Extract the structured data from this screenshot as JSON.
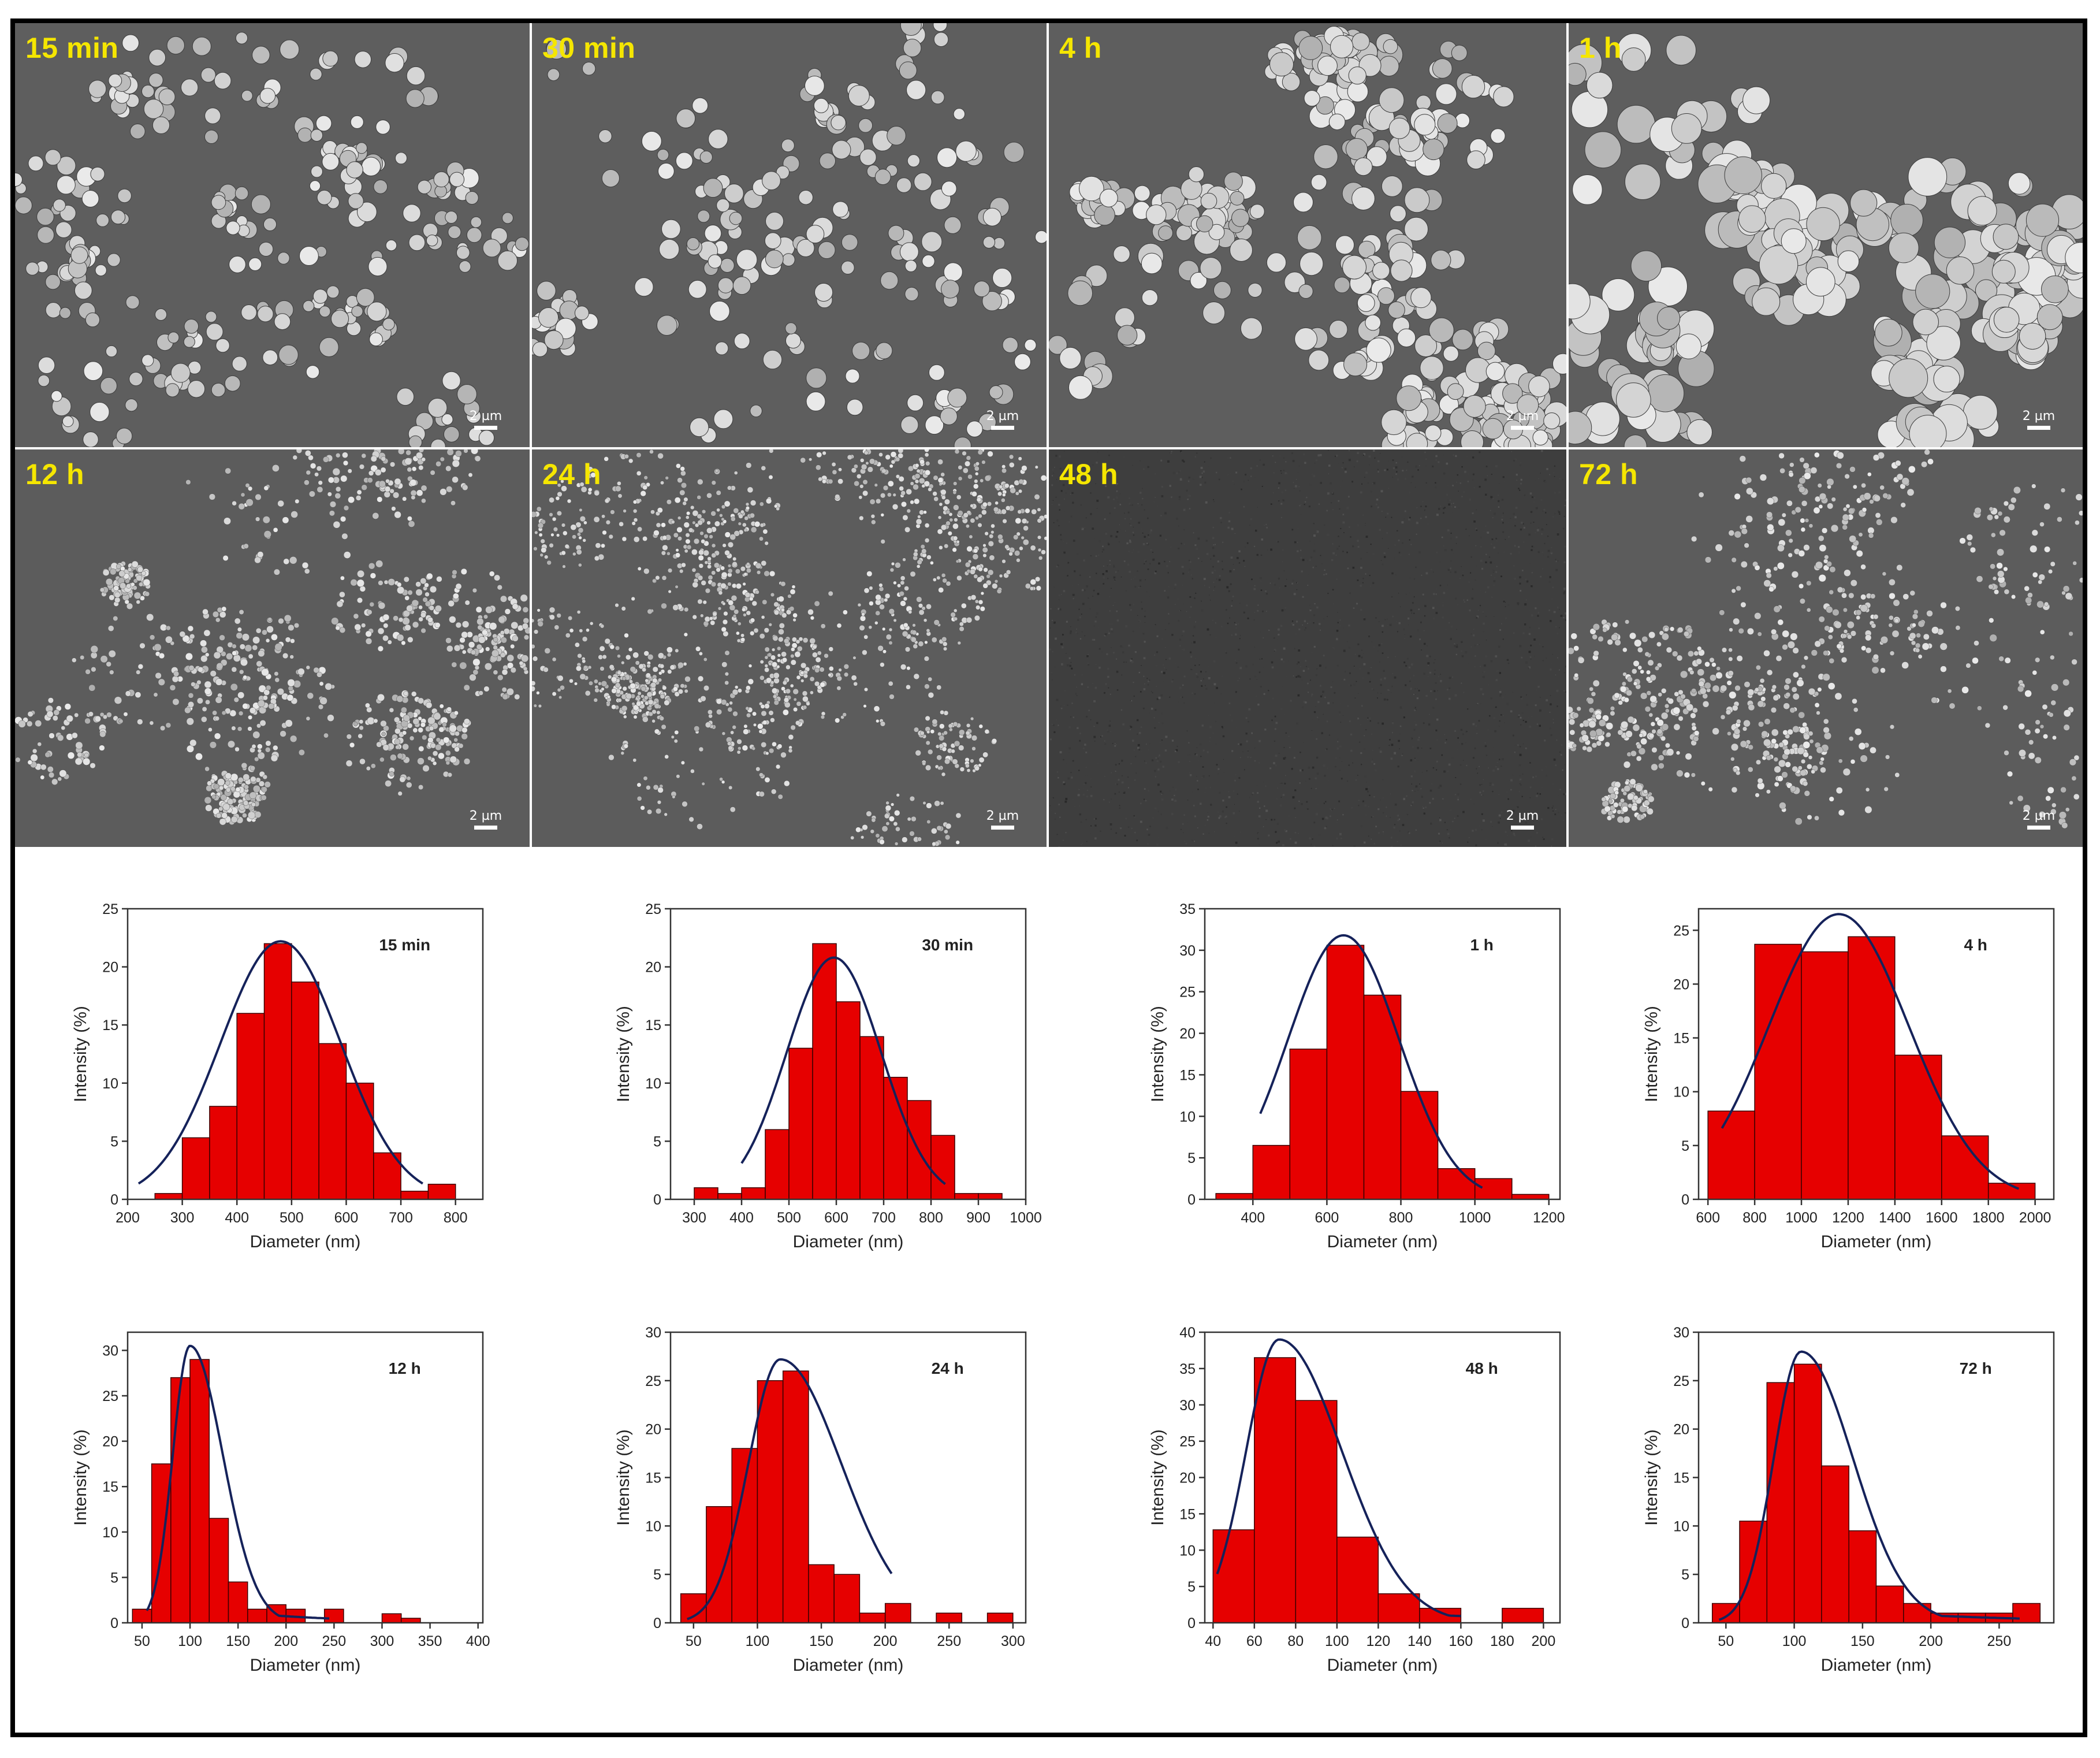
{
  "sem": {
    "scale_label": "2 µm",
    "panels": [
      {
        "label": "15 min",
        "density": 0.55,
        "size": 13,
        "tone": 0
      },
      {
        "label": "30 min",
        "density": 0.45,
        "size": 14,
        "tone": 0
      },
      {
        "label": "4 h",
        "density": 0.8,
        "size": 17,
        "tone": 0
      },
      {
        "label": "1 h",
        "density": 0.55,
        "size": 26,
        "tone": 0
      },
      {
        "label": "12 h",
        "density": 0.65,
        "size": 5,
        "tone": 1
      },
      {
        "label": "24 h",
        "density": 0.95,
        "size": 4,
        "tone": 1
      },
      {
        "label": "48 h",
        "density": 1.0,
        "size": 2,
        "tone": 2
      },
      {
        "label": "72 h",
        "density": 0.55,
        "size": 5,
        "tone": 1
      }
    ]
  },
  "colors": {
    "bar_fill": "#e60000",
    "bar_edge": "#3a0000",
    "fit_line": "#15225a"
  },
  "chart_data": [
    {
      "type": "bar",
      "title": "15 min",
      "xlabel": "Diameter (nm)",
      "ylabel": "Intensity (%)",
      "xlim": [
        200,
        850
      ],
      "ylim": [
        0,
        25
      ],
      "xticks": [
        200,
        300,
        400,
        500,
        600,
        700,
        800
      ],
      "yticks": [
        0,
        5,
        10,
        15,
        20,
        25
      ],
      "bin_edges": [
        250,
        300,
        350,
        400,
        450,
        500,
        550,
        600,
        650,
        700,
        750,
        800
      ],
      "values": [
        0.5,
        5.3,
        8.0,
        16.0,
        22.0,
        18.7,
        13.4,
        10.0,
        4.0,
        0.7,
        1.3
      ],
      "fit": {
        "mean": 480,
        "sd": 110,
        "peak": 22.2,
        "range": [
          220,
          740
        ]
      }
    },
    {
      "type": "bar",
      "title": "30 min",
      "xlabel": "Diameter (nm)",
      "ylabel": "Intensity (%)",
      "xlim": [
        250,
        1000
      ],
      "ylim": [
        0,
        25
      ],
      "xticks": [
        300,
        400,
        500,
        600,
        700,
        800,
        900,
        1000
      ],
      "yticks": [
        0,
        5,
        10,
        15,
        20,
        25
      ],
      "bin_edges": [
        300,
        350,
        400,
        450,
        500,
        550,
        600,
        650,
        700,
        750,
        800,
        850,
        900,
        950
      ],
      "values": [
        1.0,
        0.5,
        1.0,
        6.0,
        13.0,
        22.0,
        17.0,
        14.0,
        10.5,
        8.5,
        5.5,
        0.5,
        0.5
      ],
      "fit": {
        "mean": 595,
        "sd": 100,
        "peak": 20.8,
        "range": [
          400,
          830
        ]
      }
    },
    {
      "type": "bar",
      "title": "1 h",
      "xlabel": "Diameter (nm)",
      "ylabel": "Intensity (%)",
      "xlim": [
        270,
        1230
      ],
      "ylim": [
        0,
        35
      ],
      "xticks": [
        400,
        600,
        800,
        1000,
        1200
      ],
      "yticks": [
        0,
        5,
        10,
        15,
        20,
        25,
        30,
        35
      ],
      "bin_edges": [
        300,
        400,
        500,
        600,
        700,
        800,
        900,
        1000,
        1100,
        1200
      ],
      "values": [
        0.7,
        6.5,
        18.1,
        30.6,
        24.6,
        13.0,
        3.7,
        2.5,
        0.6
      ],
      "fit": {
        "mean": 645,
        "sd": 150,
        "peak": 31.8,
        "range": [
          420,
          1020
        ]
      }
    },
    {
      "type": "bar",
      "title": "4 h",
      "xlabel": "Diameter (nm)",
      "ylabel": "Intensity (%)",
      "xlim": [
        560,
        2080
      ],
      "ylim": [
        0,
        27
      ],
      "xticks": [
        600,
        800,
        1000,
        1200,
        1400,
        1600,
        1800,
        2000
      ],
      "yticks": [
        0,
        5,
        10,
        15,
        20,
        25
      ],
      "bin_edges": [
        600,
        800,
        1000,
        1200,
        1400,
        1600,
        1800,
        2000
      ],
      "values": [
        8.2,
        23.7,
        23.0,
        24.4,
        13.4,
        5.9,
        1.5
      ],
      "fit": {
        "mean": 1160,
        "sd": 300,
        "peak": 26.5,
        "range": [
          660,
          1930
        ]
      }
    },
    {
      "type": "bar",
      "title": "12 h",
      "xlabel": "Diameter (nm)",
      "ylabel": "Intensity (%)",
      "xlim": [
        35,
        405
      ],
      "ylim": [
        0,
        32
      ],
      "xticks": [
        50,
        100,
        150,
        200,
        250,
        300,
        350,
        400
      ],
      "yticks": [
        0,
        5,
        10,
        15,
        20,
        25,
        30
      ],
      "bin_edges": [
        40,
        60,
        80,
        100,
        120,
        140,
        160,
        180,
        200,
        220,
        240,
        260,
        280,
        300,
        320,
        340
      ],
      "values": [
        1.5,
        17.5,
        27.0,
        29.0,
        11.5,
        4.5,
        1.5,
        2.0,
        1.5,
        0,
        1.5,
        0,
        0,
        1.0,
        0.5
      ],
      "fit": {
        "mean": 100,
        "sd": 18,
        "peak": 30.5,
        "range": [
          55,
          245
        ]
      }
    },
    {
      "type": "bar",
      "title": "24 h",
      "xlabel": "Diameter (nm)",
      "ylabel": "Intensity (%)",
      "xlim": [
        32,
        310
      ],
      "ylim": [
        0,
        30
      ],
      "xticks": [
        50,
        100,
        150,
        200,
        250,
        300
      ],
      "yticks": [
        0,
        5,
        10,
        15,
        20,
        25,
        30
      ],
      "bin_edges": [
        40,
        60,
        80,
        100,
        120,
        140,
        160,
        180,
        200,
        220,
        240,
        260,
        280,
        300
      ],
      "values": [
        3.0,
        12.0,
        18.0,
        25.0,
        26.0,
        6.0,
        5.0,
        1.0,
        2.0,
        0,
        1.0,
        0,
        1.0
      ],
      "fit": {
        "mean": 118,
        "sd": 25,
        "peak": 27.2,
        "range": [
          45,
          205
        ]
      }
    },
    {
      "type": "bar",
      "title": "48 h",
      "xlabel": "Diameter (nm)",
      "ylabel": "Intensity (%)",
      "xlim": [
        36,
        208
      ],
      "ylim": [
        0,
        40
      ],
      "xticks": [
        40,
        60,
        80,
        100,
        120,
        140,
        160,
        180,
        200
      ],
      "yticks": [
        0,
        5,
        10,
        15,
        20,
        25,
        30,
        35,
        40
      ],
      "bin_edges": [
        40,
        60,
        80,
        100,
        120,
        140,
        160,
        180,
        200
      ],
      "values": [
        12.8,
        36.5,
        30.6,
        11.8,
        4.0,
        2.0,
        0,
        2.0
      ],
      "fit": {
        "mean": 72,
        "sd": 16,
        "peak": 39.0,
        "range": [
          42,
          160
        ]
      }
    },
    {
      "type": "bar",
      "title": "72 h",
      "xlabel": "Diameter (nm)",
      "ylabel": "Intensity (%)",
      "xlim": [
        30,
        290
      ],
      "ylim": [
        0,
        30
      ],
      "xticks": [
        50,
        100,
        150,
        200,
        250
      ],
      "yticks": [
        0,
        5,
        10,
        15,
        20,
        25,
        30
      ],
      "bin_edges": [
        40,
        60,
        80,
        100,
        120,
        140,
        160,
        180,
        200,
        220,
        240,
        260,
        280
      ],
      "values": [
        2.0,
        10.5,
        24.8,
        26.7,
        16.2,
        9.5,
        3.8,
        2.0,
        1.0,
        1.0,
        1.0,
        2.0
      ],
      "fit": {
        "mean": 105,
        "sd": 20,
        "peak": 28.0,
        "range": [
          45,
          265
        ]
      }
    }
  ]
}
